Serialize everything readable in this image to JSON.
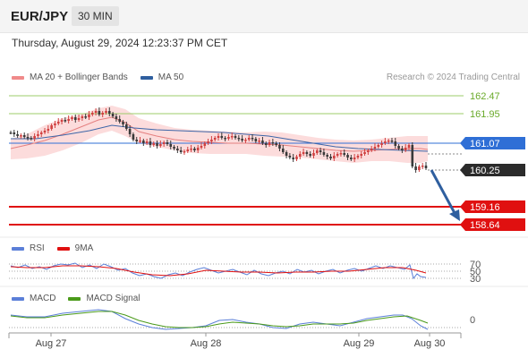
{
  "header": {
    "symbol": "EUR/JPY",
    "interval": "30 MIN"
  },
  "datetime": "Thursday, August 29, 2024 12:23:37 PM CET",
  "main_legend": [
    {
      "label": "MA 20 + Bollinger Bands",
      "color": "#f08a8a"
    },
    {
      "label": "MA 50",
      "color": "#2f5f9f"
    }
  ],
  "credit": "Research © 2024 Trading Central",
  "price_levels": [
    {
      "value": "162.47",
      "color": "#6aaa2a",
      "style": "text"
    },
    {
      "value": "161.95",
      "color": "#6aaa2a",
      "style": "text"
    },
    {
      "value": "161.07",
      "color": "#2f6fd6",
      "style": "tag"
    },
    {
      "value": "160.25",
      "color": "#2b2b2b",
      "style": "tag"
    },
    {
      "value": "159.16",
      "color": "#e01010",
      "style": "tag"
    },
    {
      "value": "158.64",
      "color": "#e01010",
      "style": "tag"
    }
  ],
  "rsi_legend": [
    {
      "label": "RSI",
      "color": "#5b7fd8"
    },
    {
      "label": "9MA",
      "color": "#e01010"
    }
  ],
  "rsi_levels": [
    "70",
    "50",
    "30"
  ],
  "macd_legend": [
    {
      "label": "MACD",
      "color": "#5b7fd8"
    },
    {
      "label": "MACD Signal",
      "color": "#4a9a1a"
    }
  ],
  "macd_levels": [
    "0"
  ],
  "x_labels": [
    "Aug 27",
    "Aug 28",
    "Aug 29",
    "Aug 30"
  ],
  "colors": {
    "bull": "#d04040",
    "bear": "#3a3a3a",
    "bollinger": "#fbd6d6",
    "forecast_arrow": "#2f5f9f"
  }
}
